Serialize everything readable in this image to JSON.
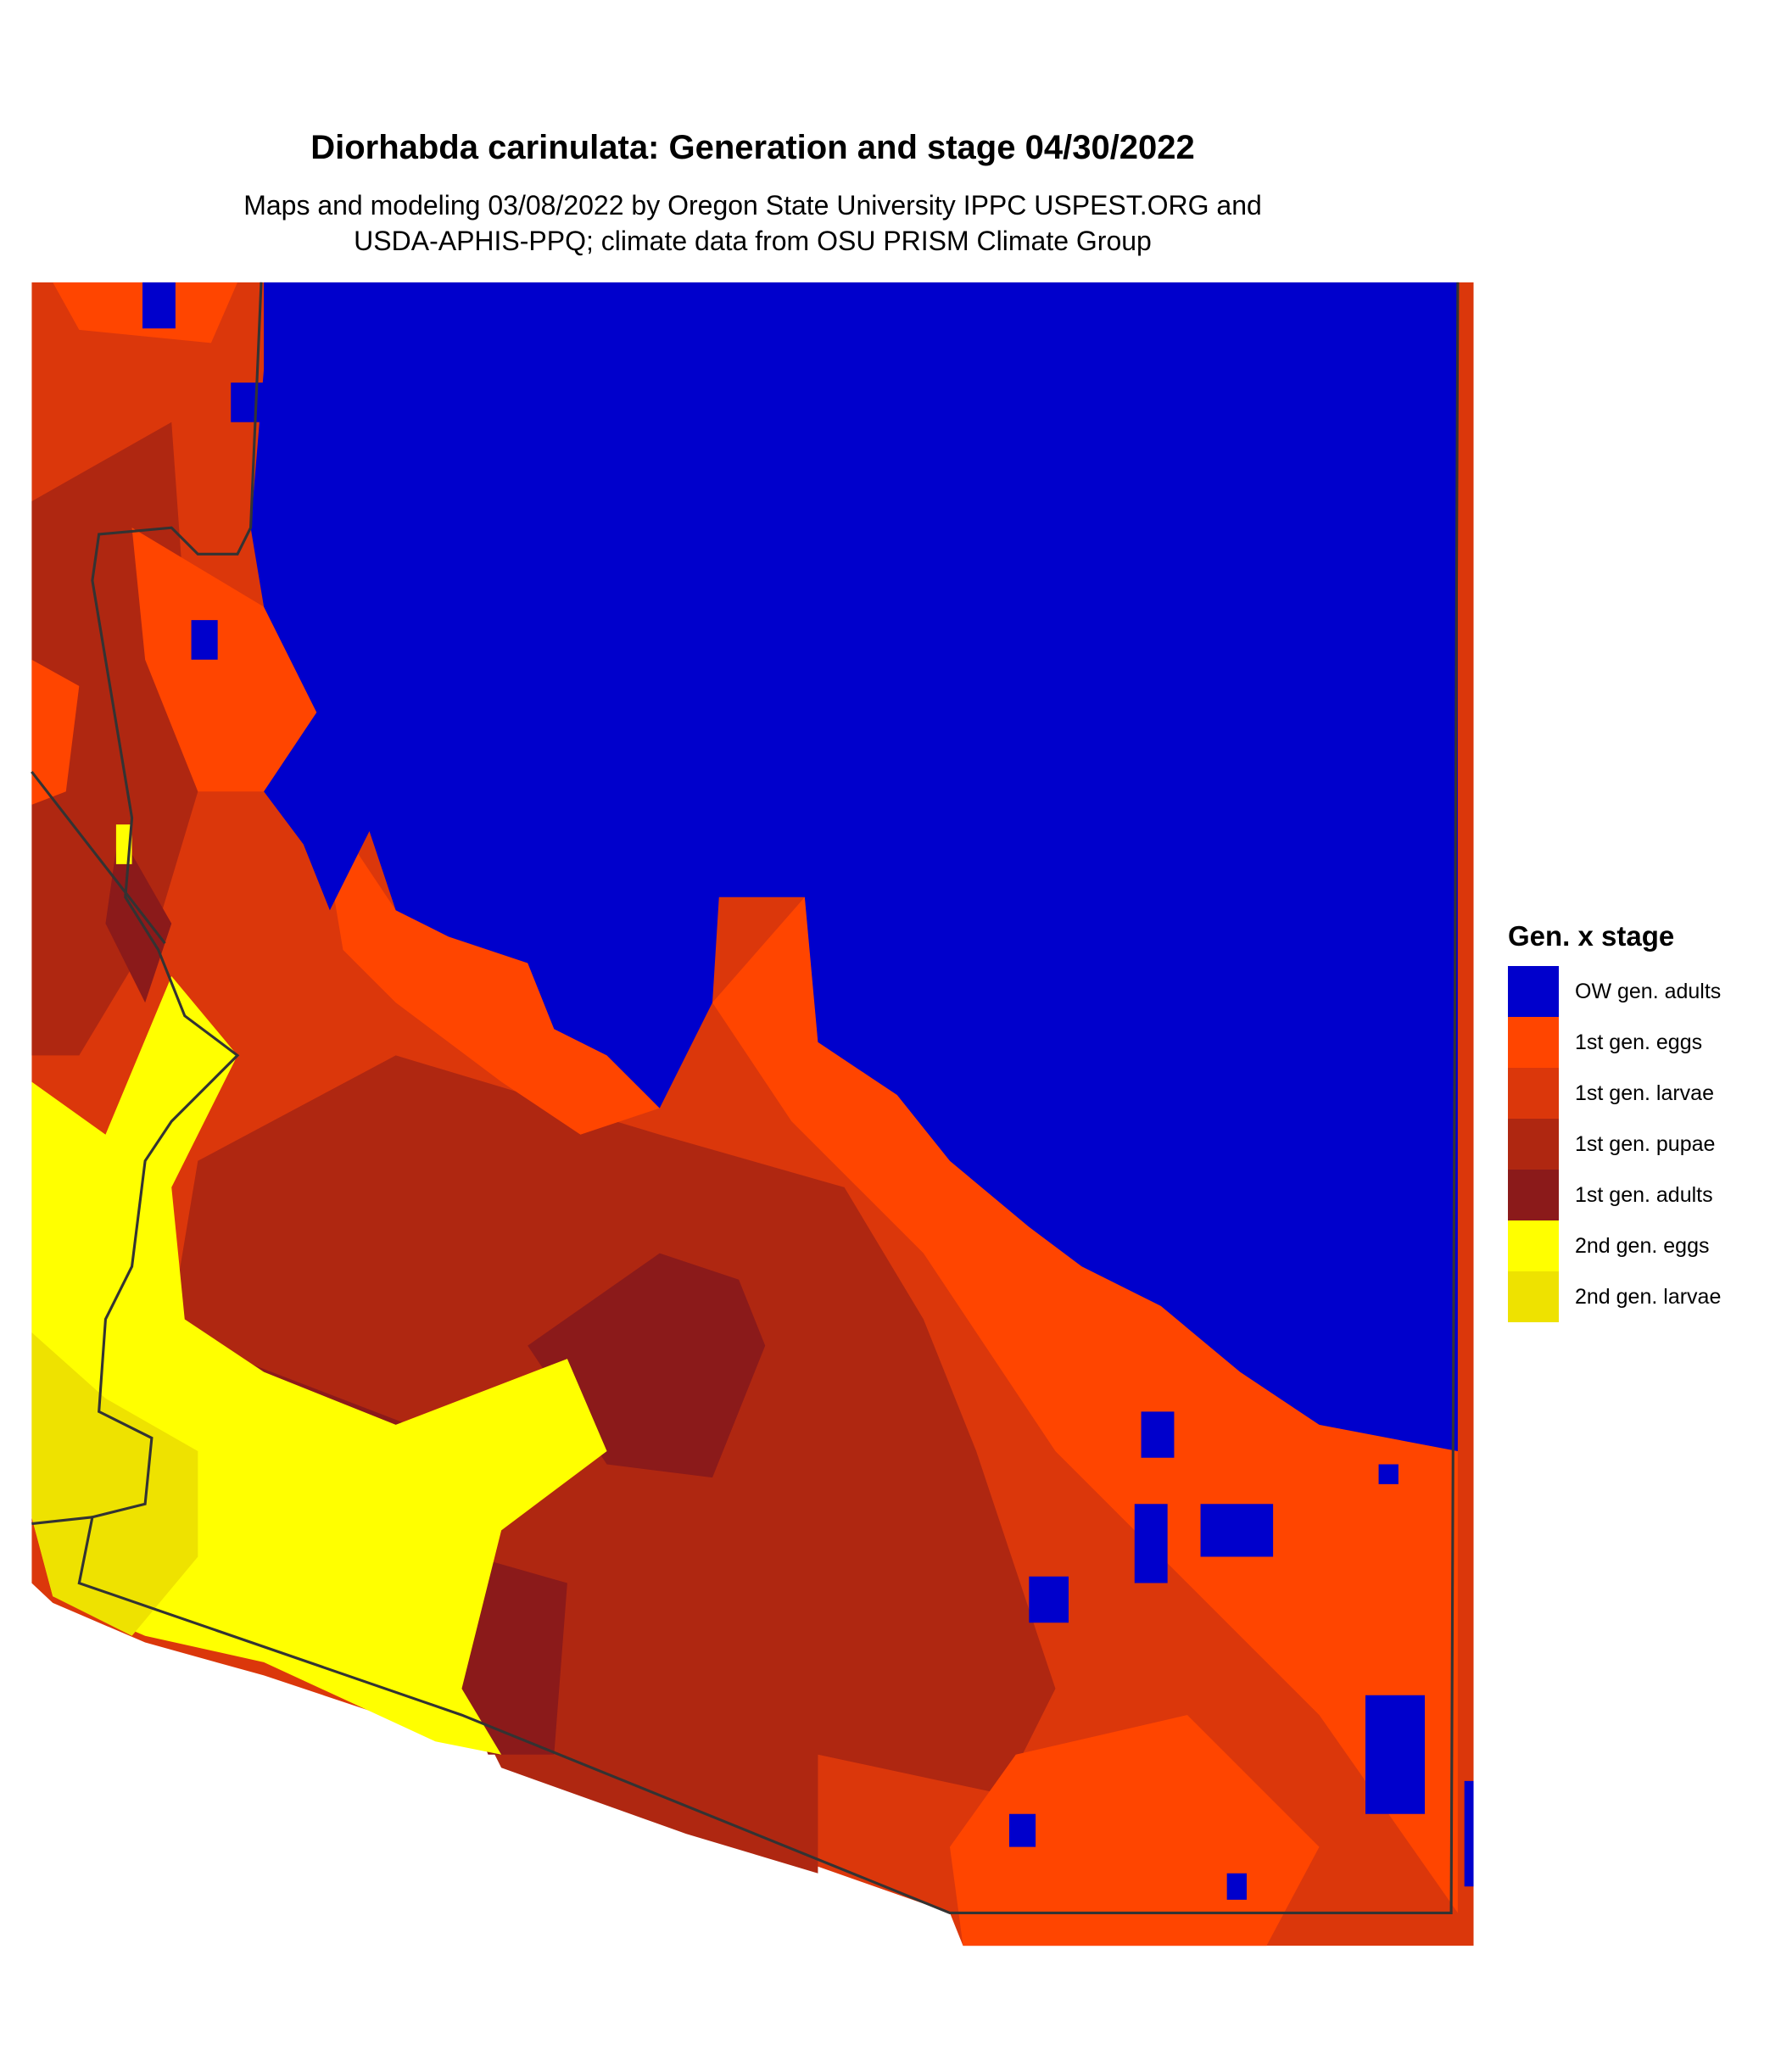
{
  "title": "Diorhabda carinulata: Generation and stage 04/30/2022",
  "subtitle_lines": [
    "Maps and modeling 03/08/2022 by Oregon State University IPPC USPEST.ORG and",
    "USDA-APHIS-PPQ; climate data from OSU PRISM Climate Group"
  ],
  "legend": {
    "title": "Gen. x stage",
    "items": [
      {
        "label": "OW gen. adults",
        "color": "#0000CC"
      },
      {
        "label": "1st gen. eggs",
        "color": "#FF4500"
      },
      {
        "label": "1st gen. larvae",
        "color": "#DB370B"
      },
      {
        "label": "1st gen. pupae",
        "color": "#AF2711"
      },
      {
        "label": "1st gen. adults",
        "color": "#8B1A1A"
      },
      {
        "label": "2nd gen. eggs",
        "color": "#FFFF00"
      },
      {
        "label": "2nd gen. larvae",
        "color": "#EEE200"
      }
    ]
  },
  "border_color": "#333333"
}
